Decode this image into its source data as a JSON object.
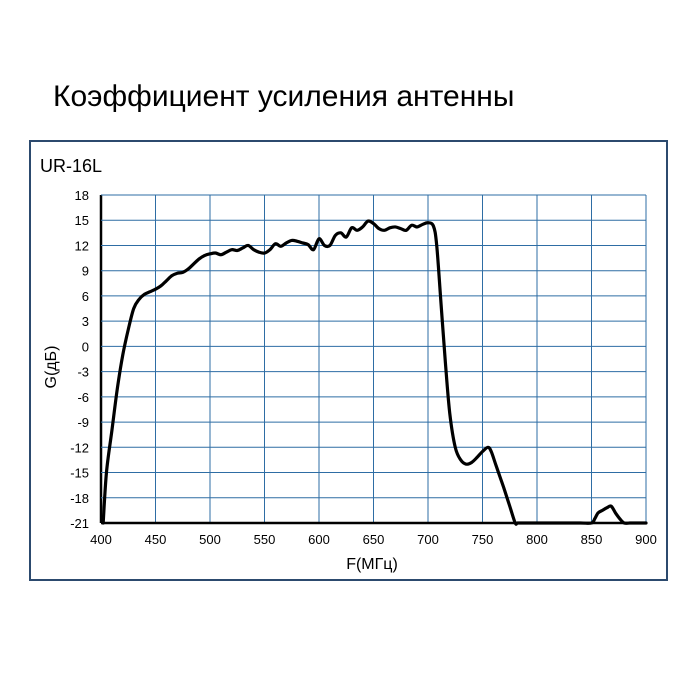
{
  "title": "Коэффициент усиления антенны",
  "chart_data": {
    "type": "line",
    "title": "Коэффициент усиления антенны",
    "panel_label": "UR-16L",
    "xlabel": "F(МГц)",
    "ylabel": "G(дБ)",
    "xlim": [
      400,
      900
    ],
    "ylim": [
      -21,
      18
    ],
    "x_ticks": [
      400,
      450,
      500,
      550,
      600,
      650,
      700,
      750,
      800,
      850,
      900
    ],
    "y_ticks": [
      18,
      15,
      12,
      9,
      6,
      3,
      0,
      -3,
      -6,
      -9,
      -12,
      -15,
      -18,
      -21
    ],
    "grid": true,
    "colors": {
      "grid": "#2e6da4",
      "line": "#000000",
      "frame": "#2c4a6e"
    },
    "series": [
      {
        "x": [
          402,
          405,
          410,
          415,
          420,
          425,
          430,
          435,
          440,
          445,
          450,
          455,
          460,
          465,
          470,
          475,
          480,
          485,
          490,
          495,
          500,
          505,
          510,
          515,
          520,
          525,
          530,
          535,
          540,
          545,
          550,
          555,
          560,
          565,
          570,
          575,
          580,
          585,
          590,
          595,
          600,
          605,
          610,
          615,
          620,
          625,
          630,
          635,
          640,
          645,
          650,
          655,
          660,
          665,
          670,
          675,
          680,
          685,
          690,
          695,
          700,
          705,
          708,
          712,
          716,
          720,
          725,
          730,
          735,
          740,
          745,
          750,
          755,
          758,
          762,
          766,
          770,
          775,
          780,
          782,
          785,
          790,
          800,
          820,
          840,
          850,
          853,
          856,
          860,
          864,
          868,
          872,
          876,
          880,
          885,
          890,
          900
        ],
        "values": [
          -21,
          -15,
          -10,
          -5,
          -1,
          2,
          4.5,
          5.6,
          6.2,
          6.5,
          6.8,
          7.2,
          7.8,
          8.4,
          8.7,
          8.8,
          9.2,
          9.8,
          10.4,
          10.8,
          11,
          11.1,
          10.9,
          11.2,
          11.5,
          11.4,
          11.7,
          12,
          11.5,
          11.2,
          11.1,
          11.5,
          12.2,
          11.9,
          12.3,
          12.6,
          12.5,
          12.3,
          12.1,
          11.5,
          12.8,
          12,
          12,
          13.2,
          13.5,
          13,
          14.1,
          13.8,
          14.2,
          14.9,
          14.6,
          14,
          13.8,
          14.1,
          14.2,
          14,
          13.8,
          14.4,
          14.2,
          14.5,
          14.7,
          14.3,
          12,
          5,
          -2,
          -8,
          -12,
          -13.5,
          -14,
          -13.8,
          -13.2,
          -12.5,
          -12,
          -12.5,
          -14,
          -15.5,
          -17,
          -19,
          -21,
          -21,
          -21,
          -21,
          -21,
          -21,
          -21,
          -21,
          -20.5,
          -19.8,
          -19.5,
          -19.2,
          -19,
          -19.8,
          -20.5,
          -21,
          -21,
          -21,
          -21
        ]
      }
    ]
  }
}
